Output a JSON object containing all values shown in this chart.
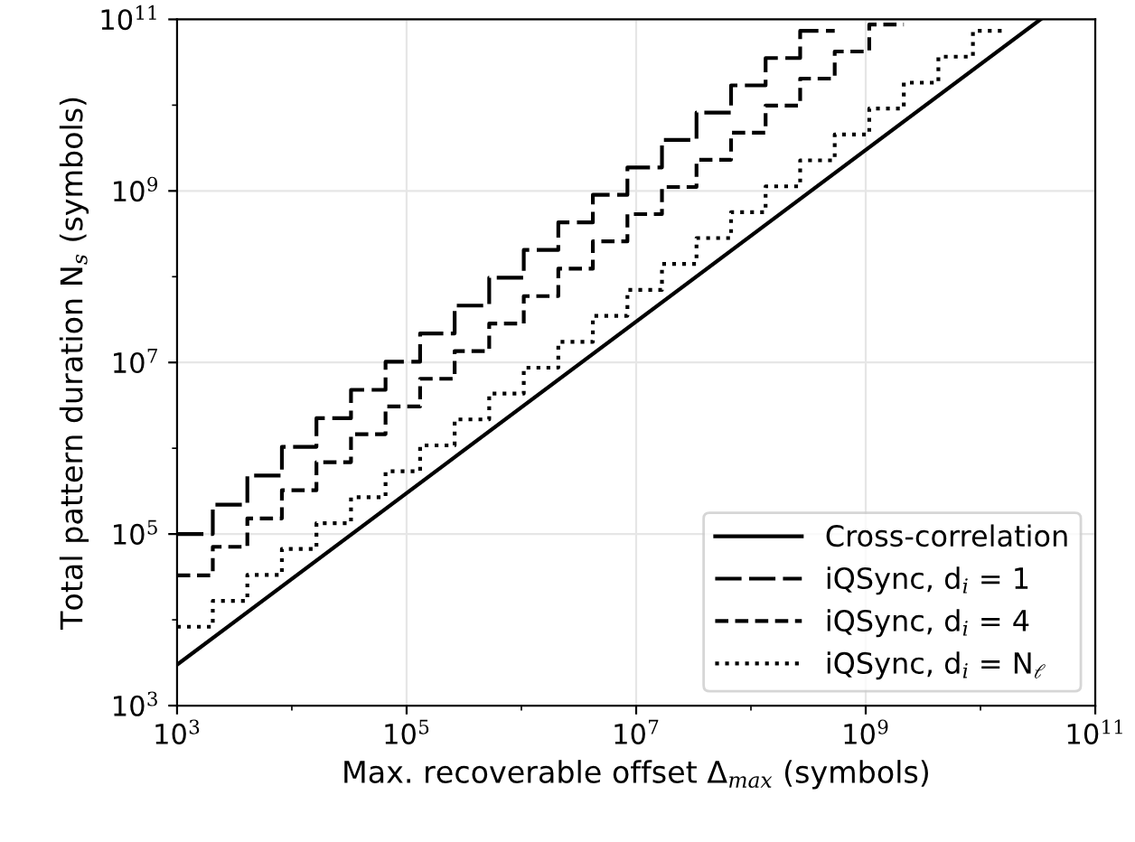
{
  "chart_data": {
    "type": "step",
    "xlabel": "Max. recoverable offset Δ$_{max}$ (symbols)",
    "ylabel": "Total pattern duration N$_{s}$ (symbols)",
    "log": "xy",
    "xlim": [
      1000,
      100000000000
    ],
    "ylim": [
      1000,
      100000000000
    ],
    "xticks": [
      {
        "value": 1000,
        "label": "10$^{3}$"
      },
      {
        "value": 10000,
        "label": null
      },
      {
        "value": 100000,
        "label": "10$^{5}$"
      },
      {
        "value": 1000000,
        "label": null
      },
      {
        "value": 10000000,
        "label": "10$^{7}$"
      },
      {
        "value": 100000000,
        "label": null
      },
      {
        "value": 1000000000,
        "label": "10$^{9}$"
      },
      {
        "value": 10000000000,
        "label": null
      },
      {
        "value": 100000000000,
        "label": "10$^{11}$"
      }
    ],
    "yticks": [
      {
        "value": 1000,
        "label": "10$^{3}$"
      },
      {
        "value": 10000,
        "label": null
      },
      {
        "value": 100000,
        "label": "10$^{5}$"
      },
      {
        "value": 1000000,
        "label": null
      },
      {
        "value": 10000000,
        "label": "10$^{7}$"
      },
      {
        "value": 100000000,
        "label": null
      },
      {
        "value": 1000000000,
        "label": "10$^{9}$"
      },
      {
        "value": 10000000000,
        "label": null
      },
      {
        "value": 100000000000,
        "label": "10$^{11}$"
      }
    ],
    "grid": true,
    "legend": "bottom right",
    "series": [
      {
        "name": "Cross-correlation",
        "type": "line",
        "line_style": "solid",
        "color": "#000000",
        "x": [
          1000,
          33300000000
        ],
        "values": [
          3000,
          99900000000
        ]
      },
      {
        "name": "iQSync, d$_{i}$ = 1",
        "line_style": "dashed",
        "color": "#000000",
        "x": [
          1000,
          2048,
          4096,
          8192,
          16384,
          32768,
          65536,
          131072,
          262144,
          524288,
          1048576,
          2097152,
          4194304,
          8388608,
          16777216,
          33554432,
          67108864,
          134217728,
          268435456,
          536870912
        ],
        "values": [
          100000,
          220000,
          480000,
          1040000,
          2240000,
          4800000,
          10200000,
          21800000,
          46100000,
          97300000,
          205000000,
          430000000,
          901000000,
          1880000000,
          3930000000,
          8190000000,
          17000000000,
          35400000000,
          73400000000,
          73400000000
        ]
      },
      {
        "name": "iQSync, d$_{i}$ = 4",
        "line_style": "dashed",
        "color": "#000000",
        "x": [
          1000,
          2048,
          4096,
          8192,
          16384,
          32768,
          65536,
          131072,
          262144,
          524288,
          1048576,
          2097152,
          4194304,
          8388608,
          16777216,
          33554432,
          67108864,
          134217728,
          268435456,
          536870912,
          1073741824,
          2147483648
        ],
        "values": [
          33000,
          71000,
          152000,
          324000,
          688000,
          1460000,
          3070000,
          6460000,
          13600000,
          28400000,
          59400000,
          124000000,
          258000000,
          537000000,
          1110000000,
          2310000000,
          4780000000,
          9900000000,
          20400000000,
          42200000000,
          87000000000,
          87000000000
        ]
      },
      {
        "name": "iQSync, d$_{i}$ = N$_{ℓ}$",
        "line_style": "dotted",
        "color": "#000000",
        "x": [
          1000,
          2048,
          4096,
          8192,
          16384,
          32768,
          65536,
          131072,
          262144,
          524288,
          1048576,
          2097152,
          4194304,
          8388608,
          16777216,
          33554432,
          67108864,
          134217728,
          268435456,
          536870912,
          1073741824,
          2147483648,
          4294967296,
          8589934592,
          17179869184
        ],
        "values": [
          8300,
          16600,
          33400,
          66900,
          134000,
          269000,
          539000,
          1080000,
          2170000,
          4340000,
          8700000,
          17400000,
          35000000,
          70100000,
          141000000,
          282000000,
          565000000,
          1130000000,
          2270000000,
          4550000000,
          9120000000,
          18300000000,
          36700000000,
          73500000000,
          73500000000
        ]
      }
    ]
  }
}
